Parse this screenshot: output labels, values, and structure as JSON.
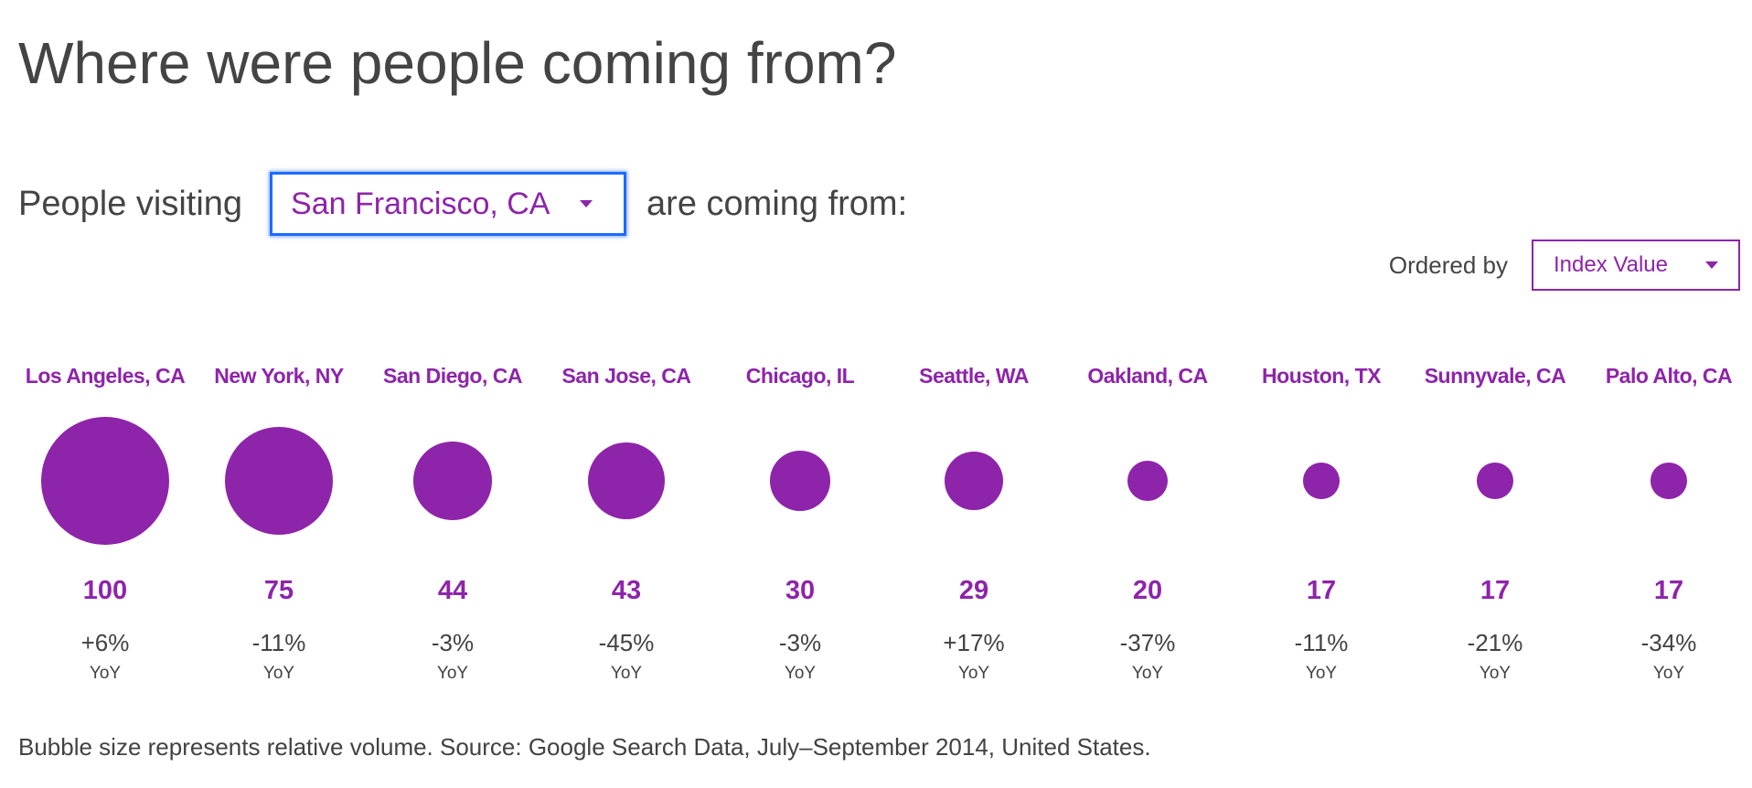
{
  "page": {
    "title": "Where were people coming from?"
  },
  "filter": {
    "prefix": "People visiting",
    "city_value": "San Francisco, CA",
    "suffix": "are coming from:"
  },
  "ordering": {
    "label": "Ordered by",
    "value": "Index Value"
  },
  "colors": {
    "accent": "#8e24aa",
    "focus": "#1e6bff",
    "text": "#424242"
  },
  "chart_data": {
    "type": "bubble",
    "categories": [
      "Los Angeles, CA",
      "New York, NY",
      "San Diego, CA",
      "San Jose, CA",
      "Chicago, IL",
      "Seattle, WA",
      "Oakland, CA",
      "Houston, TX",
      "Sunnyvale, CA",
      "Palo Alto, CA"
    ],
    "values": [
      100,
      75,
      44,
      43,
      30,
      29,
      20,
      17,
      17,
      17
    ],
    "yoy": [
      "+6%",
      "-11%",
      "-3%",
      "-45%",
      "-3%",
      "+17%",
      "-37%",
      "-11%",
      "-21%",
      "-34%"
    ],
    "yoy_label": "YoY",
    "relative_volume": [
      1.0,
      0.72,
      0.37,
      0.36,
      0.22,
      0.21,
      0.1,
      0.08,
      0.08,
      0.08
    ]
  },
  "footnote": "Bubble size represents relative volume. Source: Google Search Data, July–September 2014, United States."
}
